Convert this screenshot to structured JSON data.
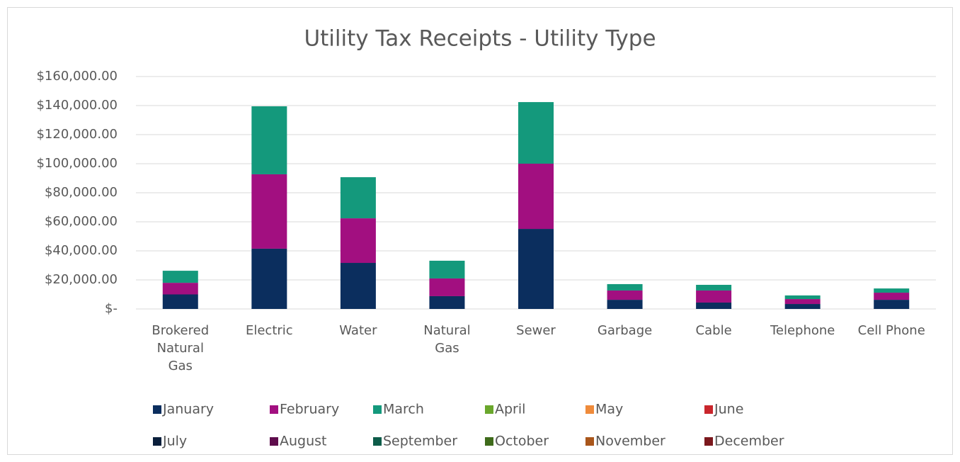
{
  "chart_data": {
    "type": "stacked_bar",
    "title": "Utility Tax Receipts - Utility Type",
    "categories": [
      "Brokered Natural Gas",
      "Electric",
      "Water",
      "Natural Gas",
      "Sewer",
      "Garbage",
      "Cable",
      "Telephone",
      "Cell Phone"
    ],
    "series": [
      {
        "name": "January",
        "color": "#0b2e5e",
        "values": [
          10000,
          41500,
          31700,
          8800,
          55100,
          6300,
          4400,
          3400,
          6300
        ]
      },
      {
        "name": "February",
        "color": "#a20f80",
        "values": [
          8000,
          51200,
          30700,
          12200,
          44900,
          6400,
          8300,
          3400,
          4900
        ]
      },
      {
        "name": "March",
        "color": "#14997c",
        "values": [
          8300,
          46800,
          28300,
          12200,
          42400,
          4400,
          3900,
          2500,
          2900
        ]
      },
      {
        "name": "April",
        "color": "#6aa72c",
        "values": [
          null,
          null,
          null,
          null,
          null,
          null,
          null,
          null,
          null
        ]
      },
      {
        "name": "May",
        "color": "#ef8b3b",
        "values": [
          null,
          null,
          null,
          null,
          null,
          null,
          null,
          null,
          null
        ]
      },
      {
        "name": "June",
        "color": "#c9262c",
        "values": [
          null,
          null,
          null,
          null,
          null,
          null,
          null,
          null,
          null
        ]
      },
      {
        "name": "July",
        "color": "#0a1f3b",
        "values": [
          null,
          null,
          null,
          null,
          null,
          null,
          null,
          null,
          null
        ]
      },
      {
        "name": "August",
        "color": "#5e0c4c",
        "values": [
          null,
          null,
          null,
          null,
          null,
          null,
          null,
          null,
          null
        ]
      },
      {
        "name": "September",
        "color": "#0d5c49",
        "values": [
          null,
          null,
          null,
          null,
          null,
          null,
          null,
          null,
          null
        ]
      },
      {
        "name": "October",
        "color": "#3f6b1b",
        "values": [
          null,
          null,
          null,
          null,
          null,
          null,
          null,
          null,
          null
        ]
      },
      {
        "name": "November",
        "color": "#a9561b",
        "values": [
          null,
          null,
          null,
          null,
          null,
          null,
          null,
          null,
          null
        ]
      },
      {
        "name": "December",
        "color": "#7b181d",
        "values": [
          null,
          null,
          null,
          null,
          null,
          null,
          null,
          null,
          null
        ]
      }
    ],
    "ylim": [
      0,
      160000
    ],
    "yticks": [
      {
        "value": 0,
        "label": "$-"
      },
      {
        "value": 20000,
        "label": "$20,000.00"
      },
      {
        "value": 40000,
        "label": "$40,000.00"
      },
      {
        "value": 60000,
        "label": "$60,000.00"
      },
      {
        "value": 80000,
        "label": "$80,000.00"
      },
      {
        "value": 100000,
        "label": "$100,000.00"
      },
      {
        "value": 120000,
        "label": "$120,000.00"
      },
      {
        "value": 140000,
        "label": "$140,000.00"
      },
      {
        "value": 160000,
        "label": "$160,000.00"
      }
    ],
    "grid": true,
    "legend": "bottom"
  }
}
